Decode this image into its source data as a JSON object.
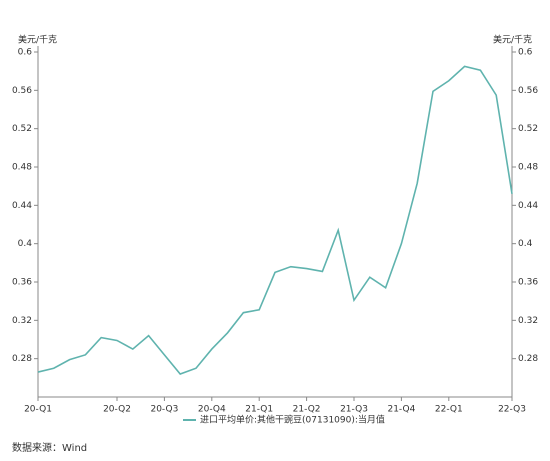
{
  "chart_data": {
    "type": "line",
    "y_label": "美元/千克",
    "y2_label": "美元/千克",
    "categories": [
      "20-Q1",
      null,
      null,
      null,
      null,
      "20-Q2",
      null,
      null,
      "20-Q3",
      null,
      null,
      "20-Q4",
      null,
      null,
      "21-Q1",
      null,
      null,
      "21-Q2",
      null,
      null,
      "21-Q3",
      null,
      null,
      "21-Q4",
      null,
      null,
      "22-Q1",
      null,
      null,
      null,
      "22-Q3"
    ],
    "series": [
      {
        "name": "进口平均单价:其他干豌豆(07131090):当月值",
        "color": "#5fb3ae",
        "values": [
          0.266,
          0.27,
          0.279,
          0.284,
          0.302,
          0.299,
          0.29,
          0.304,
          0.284,
          0.264,
          0.27,
          0.29,
          0.307,
          0.328,
          0.331,
          0.37,
          0.376,
          0.374,
          0.371,
          0.414,
          0.341,
          0.365,
          0.354,
          0.4,
          0.463,
          0.559,
          0.57,
          0.585,
          0.581,
          0.555,
          0.452
        ]
      }
    ],
    "ylim": [
      0.24,
      0.6
    ],
    "yticks": [
      0.6,
      0.56,
      0.52,
      0.48,
      0.44,
      0.4,
      0.36,
      0.32,
      0.28
    ],
    "y2lim": [
      0.24,
      0.6
    ],
    "y2ticks": [
      0.6,
      0.56,
      0.52,
      0.48,
      0.44,
      0.4,
      0.36,
      0.32,
      0.28
    ],
    "source": "数据来源：Wind"
  }
}
